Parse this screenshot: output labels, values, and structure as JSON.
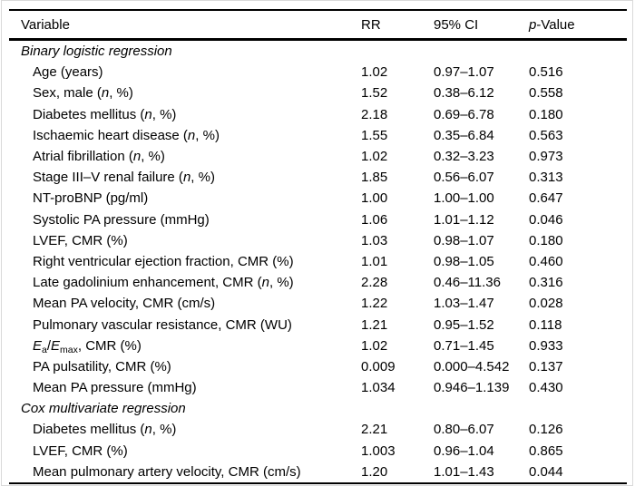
{
  "frame": {
    "border_color": "#d9d9d9"
  },
  "table": {
    "header": {
      "variable": "Variable",
      "rr": "RR",
      "ci": "95% CI",
      "p": "*p*-Value"
    },
    "sections": [
      {
        "header": "Binary logistic regression",
        "rows": [
          {
            "variable": "Age (years)",
            "rr": "1.02",
            "ci": "0.97–1.07",
            "p": "0.516"
          },
          {
            "variable": "Sex, male (*n*, %)",
            "rr": "1.52",
            "ci": "0.38–6.12",
            "p": "0.558"
          },
          {
            "variable": "Diabetes mellitus (*n*, %)",
            "rr": "2.18",
            "ci": "0.69–6.78",
            "p": "0.180"
          },
          {
            "variable": "Ischaemic heart disease (*n*, %)",
            "rr": "1.55",
            "ci": "0.35–6.84",
            "p": "0.563"
          },
          {
            "variable": "Atrial fibrillation (*n*, %)",
            "rr": "1.02",
            "ci": "0.32–3.23",
            "p": "0.973"
          },
          {
            "variable": "Stage III–V renal failure (*n*, %)",
            "rr": "1.85",
            "ci": "0.56–6.07",
            "p": "0.313"
          },
          {
            "variable": "NT-proBNP (pg/ml)",
            "rr": "1.00",
            "ci": "1.00–1.00",
            "p": "0.647"
          },
          {
            "variable": "Systolic PA pressure (mmHg)",
            "rr": "1.06",
            "ci": "1.01–1.12",
            "p": "0.046"
          },
          {
            "variable": "LVEF, CMR (%)",
            "rr": "1.03",
            "ci": "0.98–1.07",
            "p": "0.180"
          },
          {
            "variable": "Right ventricular ejection fraction, CMR (%)",
            "rr": "1.01",
            "ci": "0.98–1.05",
            "p": "0.460"
          },
          {
            "variable": "Late gadolinium enhancement, CMR (*n*, %)",
            "rr": "2.28",
            "ci": "0.46–11.36",
            "p": "0.316"
          },
          {
            "variable": "Mean PA velocity, CMR (cm/s)",
            "rr": "1.22",
            "ci": "1.03–1.47",
            "p": "0.028"
          },
          {
            "variable": "Pulmonary vascular resistance, CMR (WU)",
            "rr": "1.21",
            "ci": "0.95–1.52",
            "p": "0.118"
          },
          {
            "variable": "*E*~a~/*E*~max~, CMR (%)",
            "rr": "1.02",
            "ci": "0.71–1.45",
            "p": "0.933"
          },
          {
            "variable": "PA pulsatility, CMR (%)",
            "rr": "0.009",
            "ci": "0.000–4.542",
            "p": "0.137"
          },
          {
            "variable": "Mean PA pressure (mmHg)",
            "rr": "1.034",
            "ci": "0.946–1.139",
            "p": "0.430"
          }
        ]
      },
      {
        "header": "Cox multivariate regression",
        "rows": [
          {
            "variable": "Diabetes mellitus (*n*, %)",
            "rr": "2.21",
            "ci": "0.80–6.07",
            "p": "0.126"
          },
          {
            "variable": "LVEF, CMR (%)",
            "rr": "1.003",
            "ci": "0.96–1.04",
            "p": "0.865"
          },
          {
            "variable": "Mean pulmonary artery velocity, CMR (cm/s)",
            "rr": "1.20",
            "ci": "1.01–1.43",
            "p": "0.044"
          }
        ]
      }
    ]
  }
}
